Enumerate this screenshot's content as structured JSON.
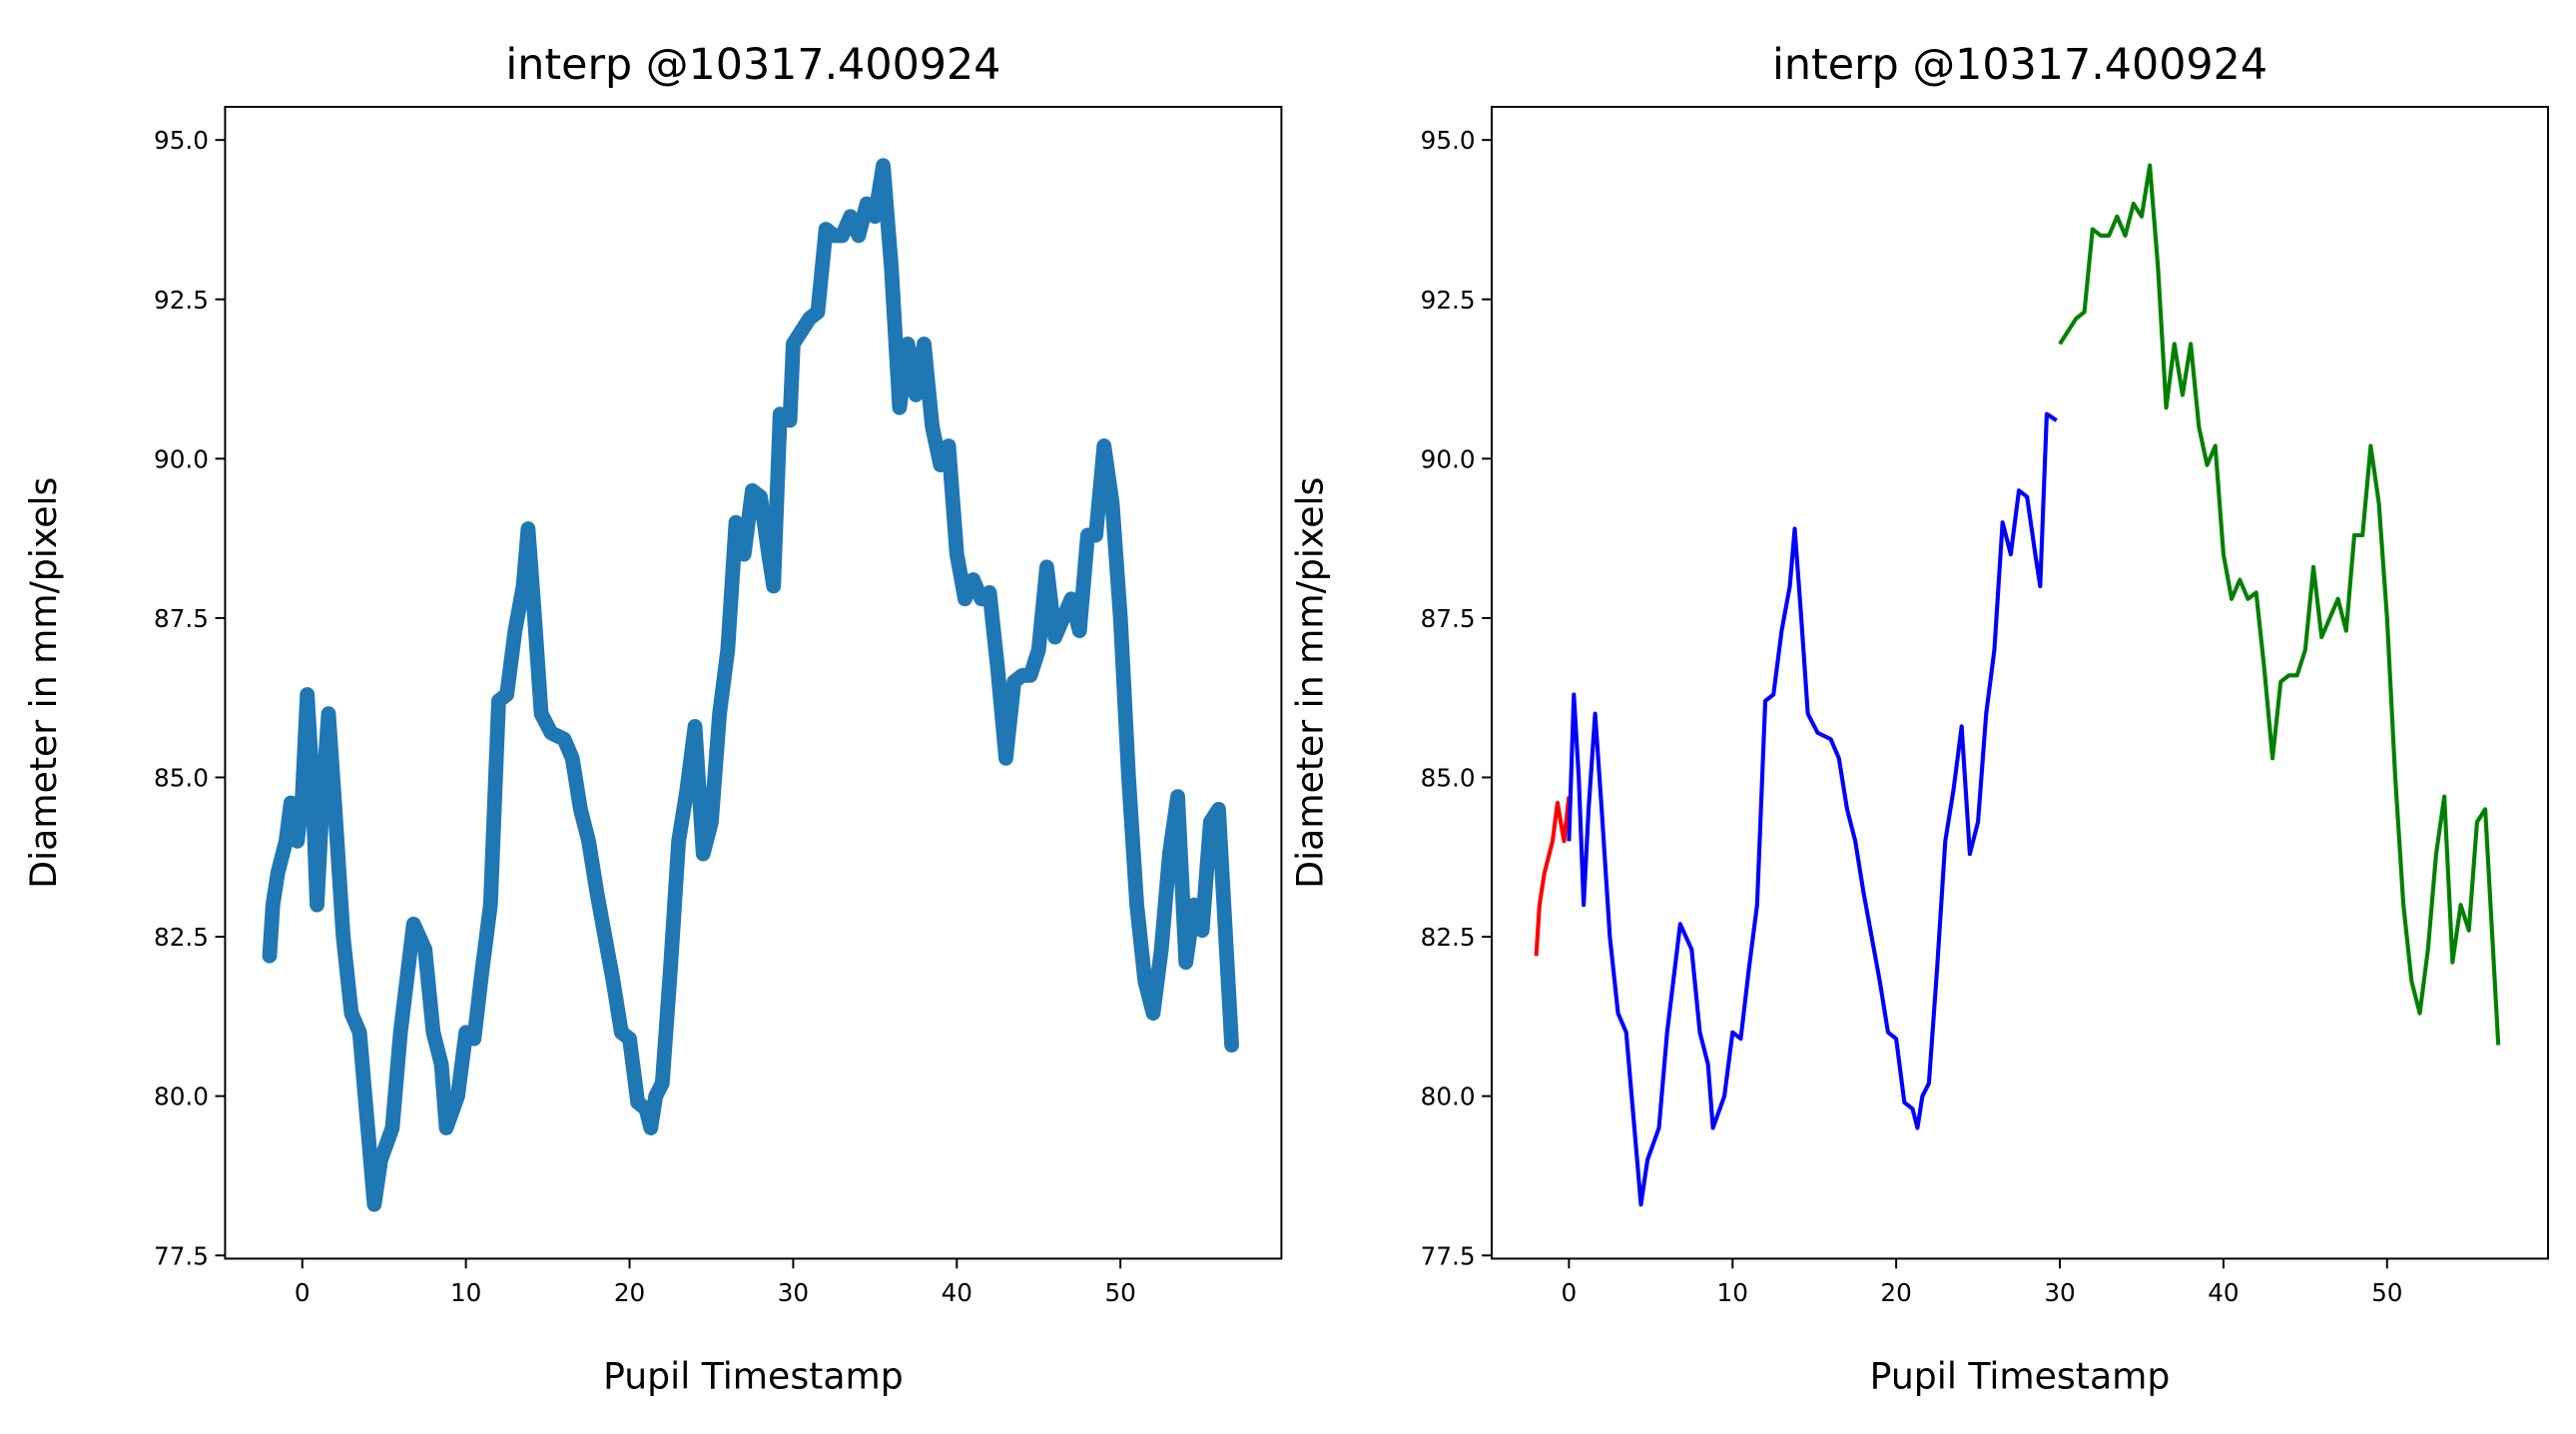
{
  "chart_data": [
    {
      "type": "line",
      "title": "interp @10317.400924",
      "xlabel": "Pupil Timestamp",
      "ylabel": "Diameter in mm/pixels",
      "xlim": [
        -4.72,
        59.84
      ],
      "ylim": [
        77.45,
        95.52
      ],
      "xticks": [
        0,
        10,
        20,
        30,
        40,
        50
      ],
      "yticks": [
        77.5,
        {
          "value": 80,
          "label": "80.0"
        },
        82.5,
        {
          "value": 85,
          "label": "85.0"
        },
        87.5,
        {
          "value": 90,
          "label": "90.0"
        },
        92.5,
        {
          "value": 95,
          "label": "95.0"
        }
      ],
      "series": [
        {
          "color": "#1f77b4",
          "x": [
            -2,
            -1.8,
            -1.5,
            -1,
            -0.7,
            -0.3,
            0,
            0.3,
            0.6,
            0.9,
            1.2,
            1.6,
            2,
            2.5,
            3,
            3.5,
            4,
            4.4,
            4.8,
            5.5,
            6,
            6.8,
            7.5,
            8,
            8.5,
            8.8,
            9.5,
            10,
            10.5,
            11,
            11.5,
            12,
            12.5,
            13,
            13.5,
            13.8,
            14.2,
            14.6,
            15.2,
            16,
            16.5,
            17,
            17.5,
            18,
            18.5,
            19,
            19.5,
            20,
            20.5,
            21,
            21.3,
            21.6,
            22,
            22.5,
            23,
            23.5,
            24,
            24.5,
            25,
            25.5,
            26,
            26.5,
            27,
            27.5,
            28,
            28.5,
            28.8,
            29.2,
            29.8,
            30,
            31,
            31.5,
            32,
            32.5,
            33,
            33.5,
            34,
            34.5,
            35,
            35.5,
            36,
            36.5,
            37,
            37.5,
            38,
            38.5,
            39,
            39.5,
            40,
            40.5,
            41,
            41.5,
            42,
            42.5,
            43,
            43.5,
            44,
            44.5,
            45,
            45.5,
            46,
            46.5,
            47,
            47.5,
            48,
            48.5,
            49,
            49.5,
            50,
            50.5,
            51,
            51.5,
            52,
            52.5,
            53,
            53.5,
            54,
            54.5,
            55,
            55.5,
            56,
            56.8
          ],
          "values": [
            82.2,
            83,
            83.5,
            84,
            84.6,
            84,
            84.7,
            86.3,
            85,
            83,
            84.5,
            86,
            84.5,
            82.5,
            81.3,
            81,
            79.5,
            78.3,
            79,
            79.5,
            81,
            82.7,
            82.3,
            81,
            80.5,
            79.5,
            80,
            81,
            80.9,
            82,
            83,
            86.2,
            86.3,
            87.3,
            88,
            88.9,
            87.5,
            86,
            85.7,
            85.6,
            85.3,
            84.5,
            84,
            83.2,
            82.5,
            81.8,
            81,
            80.9,
            79.9,
            79.8,
            79.5,
            80,
            80.2,
            82,
            84,
            84.8,
            85.8,
            83.8,
            84.3,
            86,
            87,
            89,
            88.5,
            89.5,
            89.4,
            88.5,
            88,
            90.7,
            90.6,
            91.8,
            92.2,
            92.3,
            93.6,
            93.5,
            93.5,
            93.8,
            93.5,
            94,
            93.8,
            94.6,
            93,
            90.8,
            91.8,
            91,
            91.8,
            90.5,
            89.9,
            90.2,
            88.5,
            87.8,
            88.1,
            87.8,
            87.9,
            86.7,
            85.3,
            86.5,
            86.6,
            86.6,
            87,
            88.3,
            87.2,
            87.5,
            87.8,
            87.3,
            88.8,
            88.8,
            90.2,
            89.3,
            87.5,
            85,
            83,
            81.8,
            81.3,
            82.3,
            83.8,
            84.7,
            82.1,
            83,
            82.6,
            84.3,
            84.5,
            80.8
          ]
        }
      ]
    },
    {
      "type": "line",
      "title": "interp @10317.400924",
      "xlabel": "Pupil Timestamp",
      "ylabel": "Diameter in mm/pixels",
      "xlim": [
        -4.72,
        59.84
      ],
      "ylim": [
        77.45,
        95.52
      ],
      "xticks": [
        0,
        10,
        20,
        30,
        40,
        50
      ],
      "yticks": [
        77.5,
        {
          "value": 80,
          "label": "80.0"
        },
        82.5,
        {
          "value": 85,
          "label": "85.0"
        },
        87.5,
        {
          "value": 90,
          "label": "90.0"
        },
        92.5,
        {
          "value": 95,
          "label": "95.0"
        }
      ],
      "series": [
        {
          "color": "red",
          "x": [
            -2,
            -1.8,
            -1.5,
            -1,
            -0.7,
            -0.3,
            0
          ],
          "values": [
            82.2,
            83,
            83.5,
            84,
            84.6,
            84,
            84.7
          ]
        },
        {
          "color": "blue",
          "x": [
            0,
            0.3,
            0.6,
            0.9,
            1.2,
            1.6,
            2,
            2.5,
            3,
            3.5,
            4,
            4.4,
            4.8,
            5.5,
            6,
            6.8,
            7.5,
            8,
            8.5,
            8.8,
            9.5,
            10,
            10.5,
            11,
            11.5,
            12,
            12.5,
            13,
            13.5,
            13.8,
            14.2,
            14.6,
            15.2,
            16,
            16.5,
            17,
            17.5,
            18,
            18.5,
            19,
            19.5,
            20,
            20.5,
            21,
            21.3,
            21.6,
            22,
            22.5,
            23,
            23.5,
            24,
            24.5,
            25,
            25.5,
            26,
            26.5,
            27,
            27.5,
            28,
            28.5,
            28.8,
            29.2,
            29.8
          ],
          "values": [
            84,
            86.3,
            85,
            83,
            84.5,
            86,
            84.5,
            82.5,
            81.3,
            81,
            79.5,
            78.3,
            79,
            79.5,
            81,
            82.7,
            82.3,
            81,
            80.5,
            79.5,
            80,
            81,
            80.9,
            82,
            83,
            86.2,
            86.3,
            87.3,
            88,
            88.9,
            87.5,
            86,
            85.7,
            85.6,
            85.3,
            84.5,
            84,
            83.2,
            82.5,
            81.8,
            81,
            80.9,
            79.9,
            79.8,
            79.5,
            80,
            80.2,
            82,
            84,
            84.8,
            85.8,
            83.8,
            84.3,
            86,
            87,
            89,
            88.5,
            89.5,
            89.4,
            88.5,
            88,
            90.7,
            90.6
          ]
        },
        {
          "color": "green",
          "x": [
            30,
            31,
            31.5,
            32,
            32.5,
            33,
            33.5,
            34,
            34.5,
            35,
            35.5,
            36,
            36.5,
            37,
            37.5,
            38,
            38.5,
            39,
            39.5,
            40,
            40.5,
            41,
            41.5,
            42,
            42.5,
            43,
            43.5,
            44,
            44.5,
            45,
            45.5,
            46,
            46.5,
            47,
            47.5,
            48,
            48.5,
            49,
            49.5,
            50,
            50.5,
            51,
            51.5,
            52,
            52.5,
            53,
            53.5,
            54,
            54.5,
            55,
            55.5,
            56,
            56.8
          ],
          "values": [
            91.8,
            92.2,
            92.3,
            93.6,
            93.5,
            93.5,
            93.8,
            93.5,
            94,
            93.8,
            94.6,
            93,
            90.8,
            91.8,
            91,
            91.8,
            90.5,
            89.9,
            90.2,
            88.5,
            87.8,
            88.1,
            87.8,
            87.9,
            86.7,
            85.3,
            86.5,
            86.6,
            86.6,
            87,
            88.3,
            87.2,
            87.5,
            87.8,
            87.3,
            88.8,
            88.8,
            90.2,
            89.3,
            87.5,
            85,
            83,
            81.8,
            81.3,
            82.3,
            83.8,
            84.7,
            82.1,
            83,
            82.6,
            84.3,
            84.5,
            80.8
          ]
        }
      ]
    }
  ]
}
